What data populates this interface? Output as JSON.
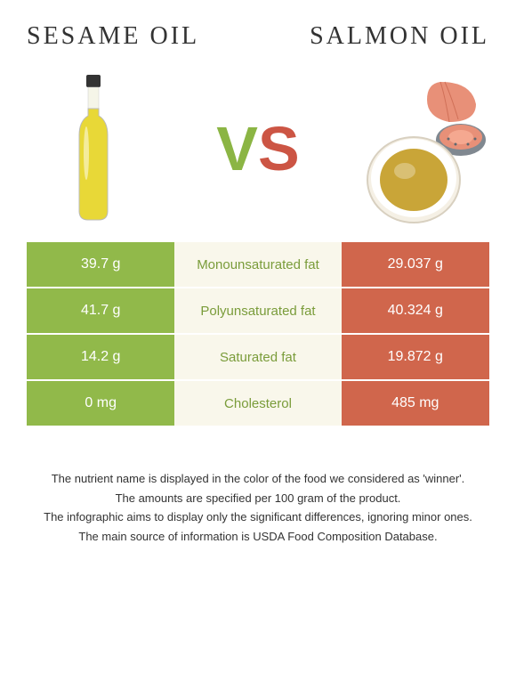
{
  "header": {
    "left_title": "Sesame oil",
    "right_title": "Salmon oil"
  },
  "vs": {
    "v": "V",
    "s": "S"
  },
  "colors": {
    "left_bg": "#91b94a",
    "right_bg": "#d0664c",
    "center_bg": "#f9f7eb",
    "center_text_green": "#7a9c3a",
    "center_text_red": "#b8513a",
    "left_text": "#ffffff",
    "right_text": "#ffffff"
  },
  "rows": [
    {
      "left": "39.7 g",
      "center": "Monounsaturated fat",
      "right": "29.037 g",
      "winner": "left"
    },
    {
      "left": "41.7 g",
      "center": "Polyunsaturated fat",
      "right": "40.324 g",
      "winner": "left"
    },
    {
      "left": "14.2 g",
      "center": "Saturated fat",
      "right": "19.872 g",
      "winner": "left"
    },
    {
      "left": "0 mg",
      "center": "Cholesterol",
      "right": "485 mg",
      "winner": "left"
    }
  ],
  "footer": {
    "line1": "The nutrient name is displayed in the color of the food we considered as 'winner'.",
    "line2": "The amounts are specified per 100 gram of the product.",
    "line3": "The infographic aims to display only the significant differences, ignoring minor ones.",
    "line4": "The main source of information is USDA Food Composition Database."
  },
  "images": {
    "bottle": {
      "oil_color": "#e8d837",
      "cap_color": "#333333",
      "glass_opacity": 0.15
    },
    "salmon": {
      "bowl_rim": "#d8d0c0",
      "oil_color": "#c9a538",
      "salmon_flesh": "#e89078",
      "salmon_skin": "#808890"
    }
  }
}
